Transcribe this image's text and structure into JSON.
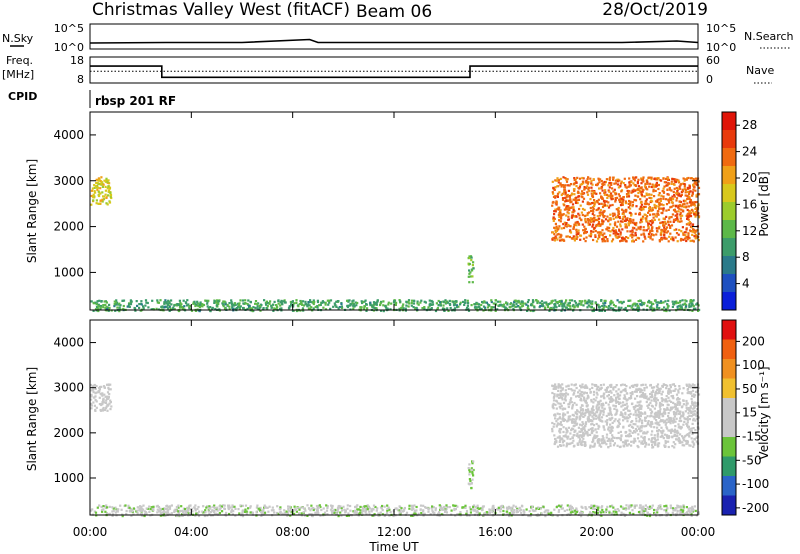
{
  "header": {
    "title": "Christmas Valley West (fitACF)",
    "beam": "Beam 06",
    "date": "28/Oct/2019"
  },
  "side_labels": {
    "nsky": "N.Sky",
    "freq": "Freq.",
    "freq_unit": "[MHz]",
    "cpid": "CPID",
    "nsearch": "N.Search",
    "nave": "Nave"
  },
  "cpid_value": "rbsp 201 RF",
  "chart_data": [
    {
      "type": "line",
      "name": "noise",
      "left_ticks": [
        "10^5",
        "10^0"
      ],
      "right_ticks": [
        "10^5",
        "10^0"
      ],
      "x": [
        "00:00",
        "03:00",
        "06:00",
        "08:40",
        "09:00",
        "12:00",
        "15:00",
        "18:00",
        "21:00",
        "23:10",
        "24:00"
      ],
      "values": [
        1.2,
        1.3,
        1.3,
        1.9,
        1.3,
        1.3,
        1.3,
        1.3,
        1.3,
        1.6,
        1.3
      ]
    },
    {
      "type": "line",
      "name": "frequency",
      "left_ticks": [
        "18",
        "8"
      ],
      "right_ticks": [
        "60",
        "0"
      ],
      "ylim_left": [
        8,
        18
      ],
      "ylim_right": [
        0,
        60
      ],
      "x": [
        "00:00",
        "02:50",
        "02:50",
        "15:00",
        "15:00",
        "24:00"
      ],
      "freq": [
        14.5,
        14.5,
        10.2,
        10.2,
        14.5,
        14.5
      ],
      "nave": [
        27,
        27,
        27,
        27,
        27,
        27
      ]
    },
    {
      "type": "heatmap",
      "name": "power",
      "xlabel": "",
      "ylabel": "Slant Range [km]",
      "y_ticks": [
        "4000",
        "3000",
        "2000",
        "1000"
      ],
      "ylim": [
        180,
        4500
      ],
      "colorbar": {
        "label": "Power [dB]",
        "ticks": [
          "28",
          "24",
          "20",
          "16",
          "12",
          "8",
          "4"
        ],
        "range": [
          0,
          30
        ],
        "colors": [
          "#0a1fd9",
          "#1e50c0",
          "#2a7a8a",
          "#3c9c6a",
          "#5cb848",
          "#9ccc2c",
          "#d8c81c",
          "#f0a018",
          "#f06a10",
          "#e83a0c",
          "#e01408"
        ]
      },
      "regions": [
        {
          "t0": 0.0,
          "t1": 0.8,
          "r0": 2500,
          "r1": 3100,
          "value": 18
        },
        {
          "t0": 18.2,
          "t1": 24.0,
          "r0": 1700,
          "r1": 3100,
          "value": 24
        },
        {
          "t0": 14.9,
          "t1": 15.1,
          "r0": 800,
          "r1": 1400,
          "value": 12
        },
        {
          "t0": 0.0,
          "t1": 24.0,
          "r0": 180,
          "r1": 420,
          "value": 10
        }
      ]
    },
    {
      "type": "heatmap",
      "name": "velocity",
      "xlabel": "Time UT",
      "ylabel": "Slant Range [km]",
      "y_ticks": [
        "4000",
        "3000",
        "2000",
        "1000"
      ],
      "x_ticks": [
        "00:00",
        "04:00",
        "08:00",
        "12:00",
        "16:00",
        "20:00",
        "00:00"
      ],
      "ylim": [
        180,
        4500
      ],
      "colorbar": {
        "label": "Velocity [m s⁻¹]",
        "ticks": [
          "200",
          "100",
          "50",
          "15",
          "-15",
          "-50",
          "-100",
          "-200"
        ],
        "range": [
          -250,
          250
        ],
        "colors": [
          "#1a22b0",
          "#2a64c8",
          "#2f9a6a",
          "#6bc43a",
          "#c8c8c8",
          "#c8c8c8",
          "#f0c030",
          "#f09020",
          "#f06010",
          "#e01010"
        ]
      },
      "regions": [
        {
          "t0": 0.0,
          "t1": 0.8,
          "r0": 2500,
          "r1": 3100,
          "value": 0
        },
        {
          "t0": 18.2,
          "t1": 24.0,
          "r0": 1700,
          "r1": 3100,
          "value": 0
        },
        {
          "t0": 14.9,
          "t1": 15.1,
          "r0": 800,
          "r1": 1400,
          "value": -60
        },
        {
          "t0": 0.0,
          "t1": 24.0,
          "r0": 180,
          "r1": 420,
          "value": -30
        }
      ]
    }
  ]
}
